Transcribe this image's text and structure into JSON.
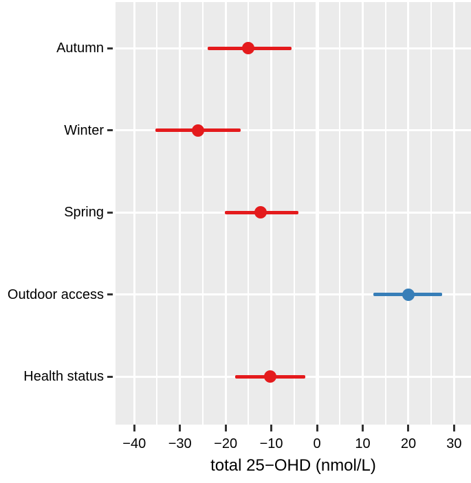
{
  "chart_data": {
    "type": "scatter",
    "subtype": "forest-dot-ci",
    "title": "",
    "xlabel": "total 25−OHD (nmol/L)",
    "ylabel": "",
    "categories": [
      "Autumn",
      "Winter",
      "Spring",
      "Outdoor access",
      "Health status"
    ],
    "series": [
      {
        "name": "estimates-with-95ci",
        "points": [
          {
            "label": "Autumn",
            "estimate": -15,
            "ci_low": -24,
            "ci_high": -5.5,
            "color": "#E41A1C"
          },
          {
            "label": "Winter",
            "estimate": -26,
            "ci_low": -35.3,
            "ci_high": -16.7,
            "color": "#E41A1C"
          },
          {
            "label": "Spring",
            "estimate": -12.3,
            "ci_low": -20.2,
            "ci_high": -4.1,
            "color": "#E41A1C"
          },
          {
            "label": "Outdoor access",
            "estimate": 20,
            "ci_low": 12.4,
            "ci_high": 27.4,
            "color": "#377EB8"
          },
          {
            "label": "Health status",
            "estimate": -10.3,
            "ci_low": -17.9,
            "ci_high": -2.6,
            "color": "#E41A1C"
          }
        ]
      }
    ],
    "x_ticks": [
      -40,
      -30,
      -20,
      -10,
      0,
      10,
      20,
      30
    ],
    "x_tick_labels": [
      "−40",
      "−30",
      "−20",
      "−10",
      "0",
      "10",
      "20",
      "30"
    ],
    "x_minor_ticks": [
      -35,
      -25,
      -15,
      -5,
      5,
      15,
      25
    ],
    "xlim": [
      -44.1,
      33.7
    ],
    "grid": true,
    "legend": "none",
    "zero_reference_line": 0
  },
  "colors": {
    "panel_background": "#EBEBEB",
    "gridline": "#FFFFFF",
    "point_red": "#E41A1C",
    "point_blue": "#377EB8",
    "tick": "#333333",
    "text": "#000000",
    "figure_background": "#FFFFFF"
  }
}
